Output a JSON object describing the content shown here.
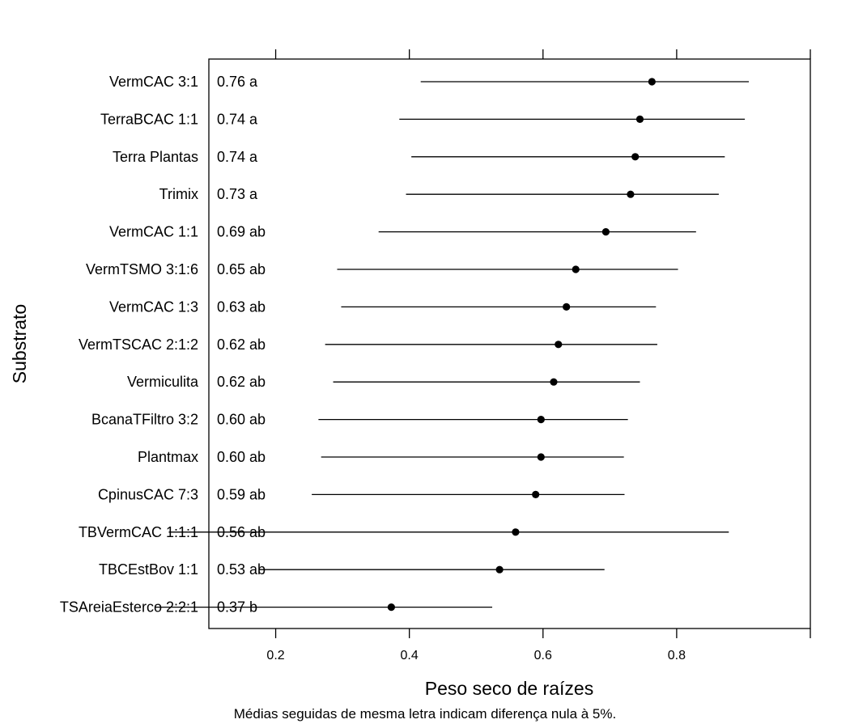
{
  "chart_data": {
    "type": "dotplot",
    "title": "",
    "xlabel": "Peso seco de raízes",
    "ylabel": "Substrato",
    "note": "Médias seguidas de mesma letra indicam diferença nula à 5%.",
    "xlim": [
      0.1,
      1.0
    ],
    "xticks": [
      0.2,
      0.4,
      0.6,
      0.8,
      1.0
    ],
    "xtick_labels": [
      "0.2",
      "0.4",
      "0.6",
      "0.8",
      ""
    ],
    "grid": false,
    "categories": [
      "VermCAC 3:1",
      "TerraBCAC 1:1",
      "Terra Plantas",
      "Trimix",
      "VermCAC 1:1",
      "VermTSMO 3:1:6",
      "VermCAC 1:3",
      "VermTSCAC 2:1:2",
      "Vermiculita",
      "BcanaTFiltro 3:2",
      "Plantmax",
      "CpinusCAC 7:3",
      "TBVermCAC 1:1:1",
      "TBCEstBov 1:1",
      "TSAreiaEsterco 2:2:1"
    ],
    "labels": [
      "0.76 a",
      "0.74 a",
      "0.74 a",
      "0.73 a",
      "0.69 ab",
      "0.65 ab",
      "0.63 ab",
      "0.62 ab",
      "0.62 ab",
      "0.60 ab",
      "0.60 ab",
      "0.59 ab",
      "0.56 ab",
      "0.53 ab",
      "0.37 b"
    ],
    "means": [
      0.763,
      0.745,
      0.738,
      0.731,
      0.694,
      0.649,
      0.635,
      0.623,
      0.616,
      0.597,
      0.597,
      0.589,
      0.559,
      0.535,
      0.373
    ],
    "lower": [
      0.417,
      0.385,
      0.403,
      0.395,
      0.354,
      0.292,
      0.298,
      0.274,
      0.286,
      0.264,
      0.268,
      0.254,
      0.04,
      0.175,
      0.02
    ],
    "upper": [
      0.908,
      0.902,
      0.872,
      0.863,
      0.829,
      0.802,
      0.769,
      0.771,
      0.745,
      0.727,
      0.721,
      0.722,
      0.878,
      0.692,
      0.524
    ]
  }
}
